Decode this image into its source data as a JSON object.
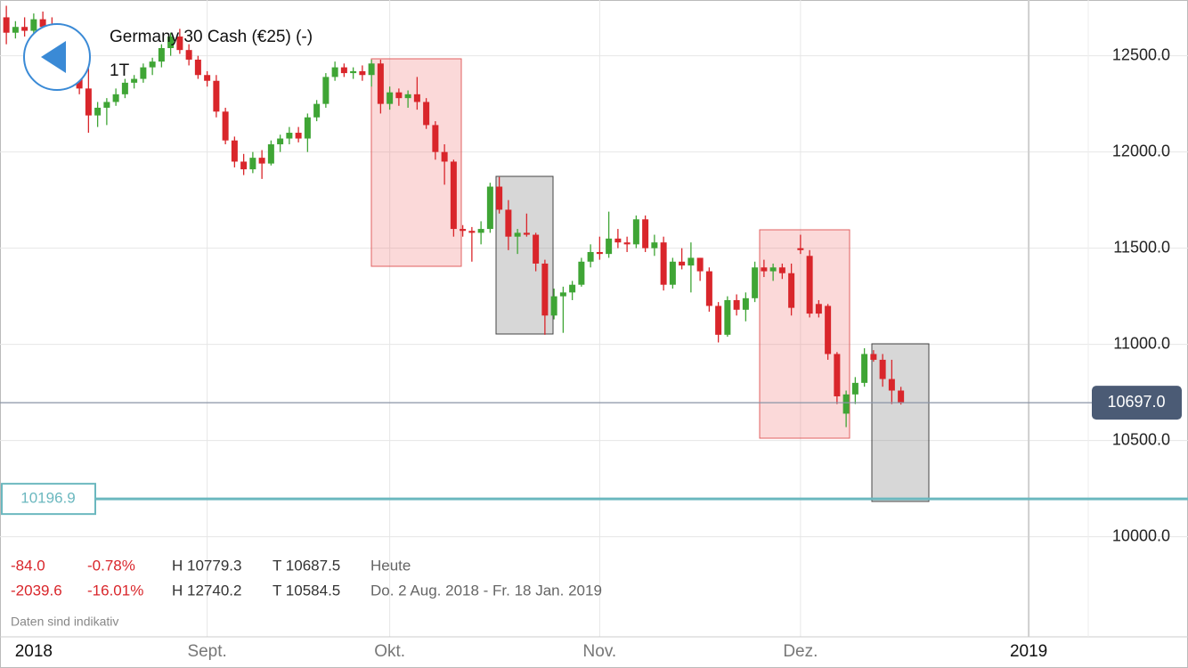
{
  "chart_data": {
    "type": "candlestick",
    "title": "Germany 30 Cash (€25) (-)",
    "subtitle": "1T",
    "categories": [
      null,
      null,
      null,
      "2018",
      null,
      null,
      null,
      null,
      null,
      null,
      null,
      null,
      null,
      null,
      null,
      null,
      null,
      null,
      null,
      null,
      null,
      null,
      "Sept.",
      null,
      null,
      null,
      null,
      null,
      null,
      null,
      null,
      null,
      null,
      null,
      null,
      null,
      null,
      null,
      null,
      null,
      null,
      null,
      "Okt.",
      null,
      null,
      null,
      null,
      null,
      null,
      null,
      null,
      null,
      null,
      null,
      null,
      null,
      null,
      null,
      null,
      null,
      null,
      null,
      null,
      null,
      null,
      "Nov.",
      null,
      null,
      null,
      null,
      null,
      null,
      null,
      null,
      null,
      null,
      null,
      null,
      null,
      null,
      null,
      null,
      null,
      null,
      null,
      null,
      null,
      "Dez.",
      null,
      null,
      null,
      null,
      null,
      null,
      null,
      null,
      null,
      null,
      null,
      null,
      null,
      null,
      null,
      null,
      null,
      null,
      null,
      null,
      null,
      null,
      null,
      null,
      "2019",
      null,
      null,
      null,
      null,
      null,
      null
    ],
    "ohlc": [
      [
        12700,
        12760,
        12560,
        12620
      ],
      [
        12620,
        12680,
        12590,
        12650
      ],
      [
        12650,
        12700,
        12600,
        12630
      ],
      [
        12630,
        12720,
        12600,
        12690
      ],
      [
        12690,
        12730,
        12620,
        12650
      ],
      [
        12650,
        12700,
        12560,
        12580
      ],
      [
        12580,
        12620,
        12500,
        12540
      ],
      [
        12540,
        12560,
        12420,
        12440
      ],
      [
        12440,
        12480,
        12300,
        12330
      ],
      [
        12330,
        12480,
        12100,
        12190
      ],
      [
        12190,
        12260,
        12130,
        12230
      ],
      [
        12230,
        12280,
        12140,
        12260
      ],
      [
        12260,
        12330,
        12240,
        12300
      ],
      [
        12300,
        12380,
        12280,
        12360
      ],
      [
        12360,
        12400,
        12330,
        12380
      ],
      [
        12380,
        12460,
        12360,
        12440
      ],
      [
        12440,
        12490,
        12400,
        12470
      ],
      [
        12470,
        12560,
        12440,
        12540
      ],
      [
        12540,
        12620,
        12500,
        12600
      ],
      [
        12600,
        12640,
        12510,
        12530
      ],
      [
        12530,
        12560,
        12450,
        12480
      ],
      [
        12480,
        12500,
        12380,
        12400
      ],
      [
        12400,
        12420,
        12340,
        12370
      ],
      [
        12370,
        12400,
        12180,
        12210
      ],
      [
        12210,
        12230,
        12040,
        12060
      ],
      [
        12060,
        12080,
        11920,
        11950
      ],
      [
        11950,
        11990,
        11880,
        11910
      ],
      [
        11910,
        12000,
        11890,
        11970
      ],
      [
        11970,
        12010,
        11860,
        11940
      ],
      [
        11940,
        12060,
        11930,
        12040
      ],
      [
        12040,
        12090,
        12000,
        12070
      ],
      [
        12070,
        12130,
        12040,
        12100
      ],
      [
        12100,
        12130,
        12050,
        12070
      ],
      [
        12070,
        12200,
        12000,
        12180
      ],
      [
        12180,
        12270,
        12160,
        12250
      ],
      [
        12250,
        12410,
        12230,
        12390
      ],
      [
        12390,
        12470,
        12370,
        12440
      ],
      [
        12440,
        12460,
        12390,
        12410
      ],
      [
        12410,
        12440,
        12380,
        12420
      ],
      [
        12420,
        12450,
        12370,
        12400
      ],
      [
        12400,
        12480,
        12340,
        12460
      ],
      [
        12460,
        12480,
        12200,
        12250
      ],
      [
        12250,
        12340,
        12220,
        12310
      ],
      [
        12310,
        12330,
        12240,
        12280
      ],
      [
        12280,
        12320,
        12230,
        12300
      ],
      [
        12300,
        12390,
        12220,
        12260
      ],
      [
        12260,
        12280,
        12120,
        12140
      ],
      [
        12140,
        12160,
        11960,
        12000
      ],
      [
        12000,
        12040,
        11830,
        11950
      ],
      [
        11950,
        11960,
        11560,
        11600
      ],
      [
        11600,
        11620,
        11560,
        11590
      ],
      [
        11590,
        11610,
        11430,
        11580
      ],
      [
        11580,
        11640,
        11520,
        11600
      ],
      [
        11600,
        11840,
        11580,
        11820
      ],
      [
        11820,
        11870,
        11680,
        11700
      ],
      [
        11700,
        11750,
        11490,
        11560
      ],
      [
        11560,
        11600,
        11470,
        11580
      ],
      [
        11580,
        11680,
        11560,
        11570
      ],
      [
        11570,
        11580,
        11380,
        11420
      ],
      [
        11420,
        11440,
        11050,
        11150
      ],
      [
        11150,
        11290,
        11130,
        11250
      ],
      [
        11250,
        11300,
        11060,
        11270
      ],
      [
        11270,
        11330,
        11230,
        11310
      ],
      [
        11310,
        11450,
        11300,
        11430
      ],
      [
        11430,
        11520,
        11400,
        11480
      ],
      [
        11480,
        11560,
        11440,
        11470
      ],
      [
        11470,
        11690,
        11450,
        11550
      ],
      [
        11550,
        11600,
        11500,
        11530
      ],
      [
        11530,
        11560,
        11480,
        11520
      ],
      [
        11520,
        11670,
        11500,
        11650
      ],
      [
        11650,
        11670,
        11480,
        11500
      ],
      [
        11500,
        11570,
        11460,
        11530
      ],
      [
        11530,
        11560,
        11280,
        11310
      ],
      [
        11310,
        11450,
        11290,
        11430
      ],
      [
        11430,
        11500,
        11390,
        11410
      ],
      [
        11410,
        11530,
        11270,
        11450
      ],
      [
        11450,
        11450,
        11330,
        11380
      ],
      [
        11380,
        11400,
        11170,
        11200
      ],
      [
        11200,
        11220,
        11010,
        11050
      ],
      [
        11050,
        11250,
        11040,
        11230
      ],
      [
        11230,
        11260,
        11150,
        11180
      ],
      [
        11180,
        11270,
        11120,
        11240
      ],
      [
        11240,
        11430,
        11220,
        11400
      ],
      [
        11400,
        11440,
        11350,
        11380
      ],
      [
        11380,
        11420,
        11330,
        11400
      ],
      [
        11400,
        11420,
        11340,
        11370
      ],
      [
        11370,
        11420,
        11150,
        11190
      ],
      [
        11500,
        11570,
        11470,
        11490
      ],
      [
        11460,
        11490,
        11140,
        11160
      ],
      [
        11210,
        11230,
        11140,
        11160
      ],
      [
        11200,
        11210,
        10920,
        10950
      ],
      [
        10950,
        10960,
        10690,
        10730
      ],
      [
        10640,
        10760,
        10570,
        10740
      ],
      [
        10740,
        10830,
        10690,
        10800
      ],
      [
        10800,
        10980,
        10780,
        10950
      ],
      [
        10950,
        10970,
        10910,
        10920
      ],
      [
        10920,
        10950,
        10780,
        10820
      ],
      [
        10820,
        10920,
        10690,
        10760
      ],
      [
        10760,
        10779.3,
        10687.5,
        10697
      ],
      null,
      null,
      null,
      null,
      null,
      null,
      null,
      null,
      null,
      null,
      null,
      null,
      null,
      null,
      null,
      null,
      null,
      null,
      null,
      null
    ],
    "up_color": "#3fa535",
    "down_color": "#d9262b",
    "ylim": [
      9480,
      12790
    ],
    "yticks": [
      {
        "value": 10000,
        "label": "10000.0"
      },
      {
        "value": 10500,
        "label": "10500.0"
      },
      {
        "value": 11000,
        "label": "11000.0"
      },
      {
        "value": 11500,
        "label": "11500.0"
      },
      {
        "value": 12000,
        "label": "12000.0"
      },
      {
        "value": 12500,
        "label": "12500.0"
      }
    ],
    "grid": true,
    "last_price": {
      "value": 10697,
      "label": "10697.0"
    },
    "alert_level": 10196.9,
    "info_rows": [
      [
        "-84.0",
        "-0.78%",
        "H 10779.3",
        "T 10687.5",
        "Heute"
      ],
      [
        "-2039.6",
        "-16.01%",
        "H 12740.2",
        "T 10584.5",
        "Do. 2 Aug. 2018 - Fr. 18 Jan. 2019"
      ]
    ],
    "footnote": "Daten sind indikativ"
  }
}
